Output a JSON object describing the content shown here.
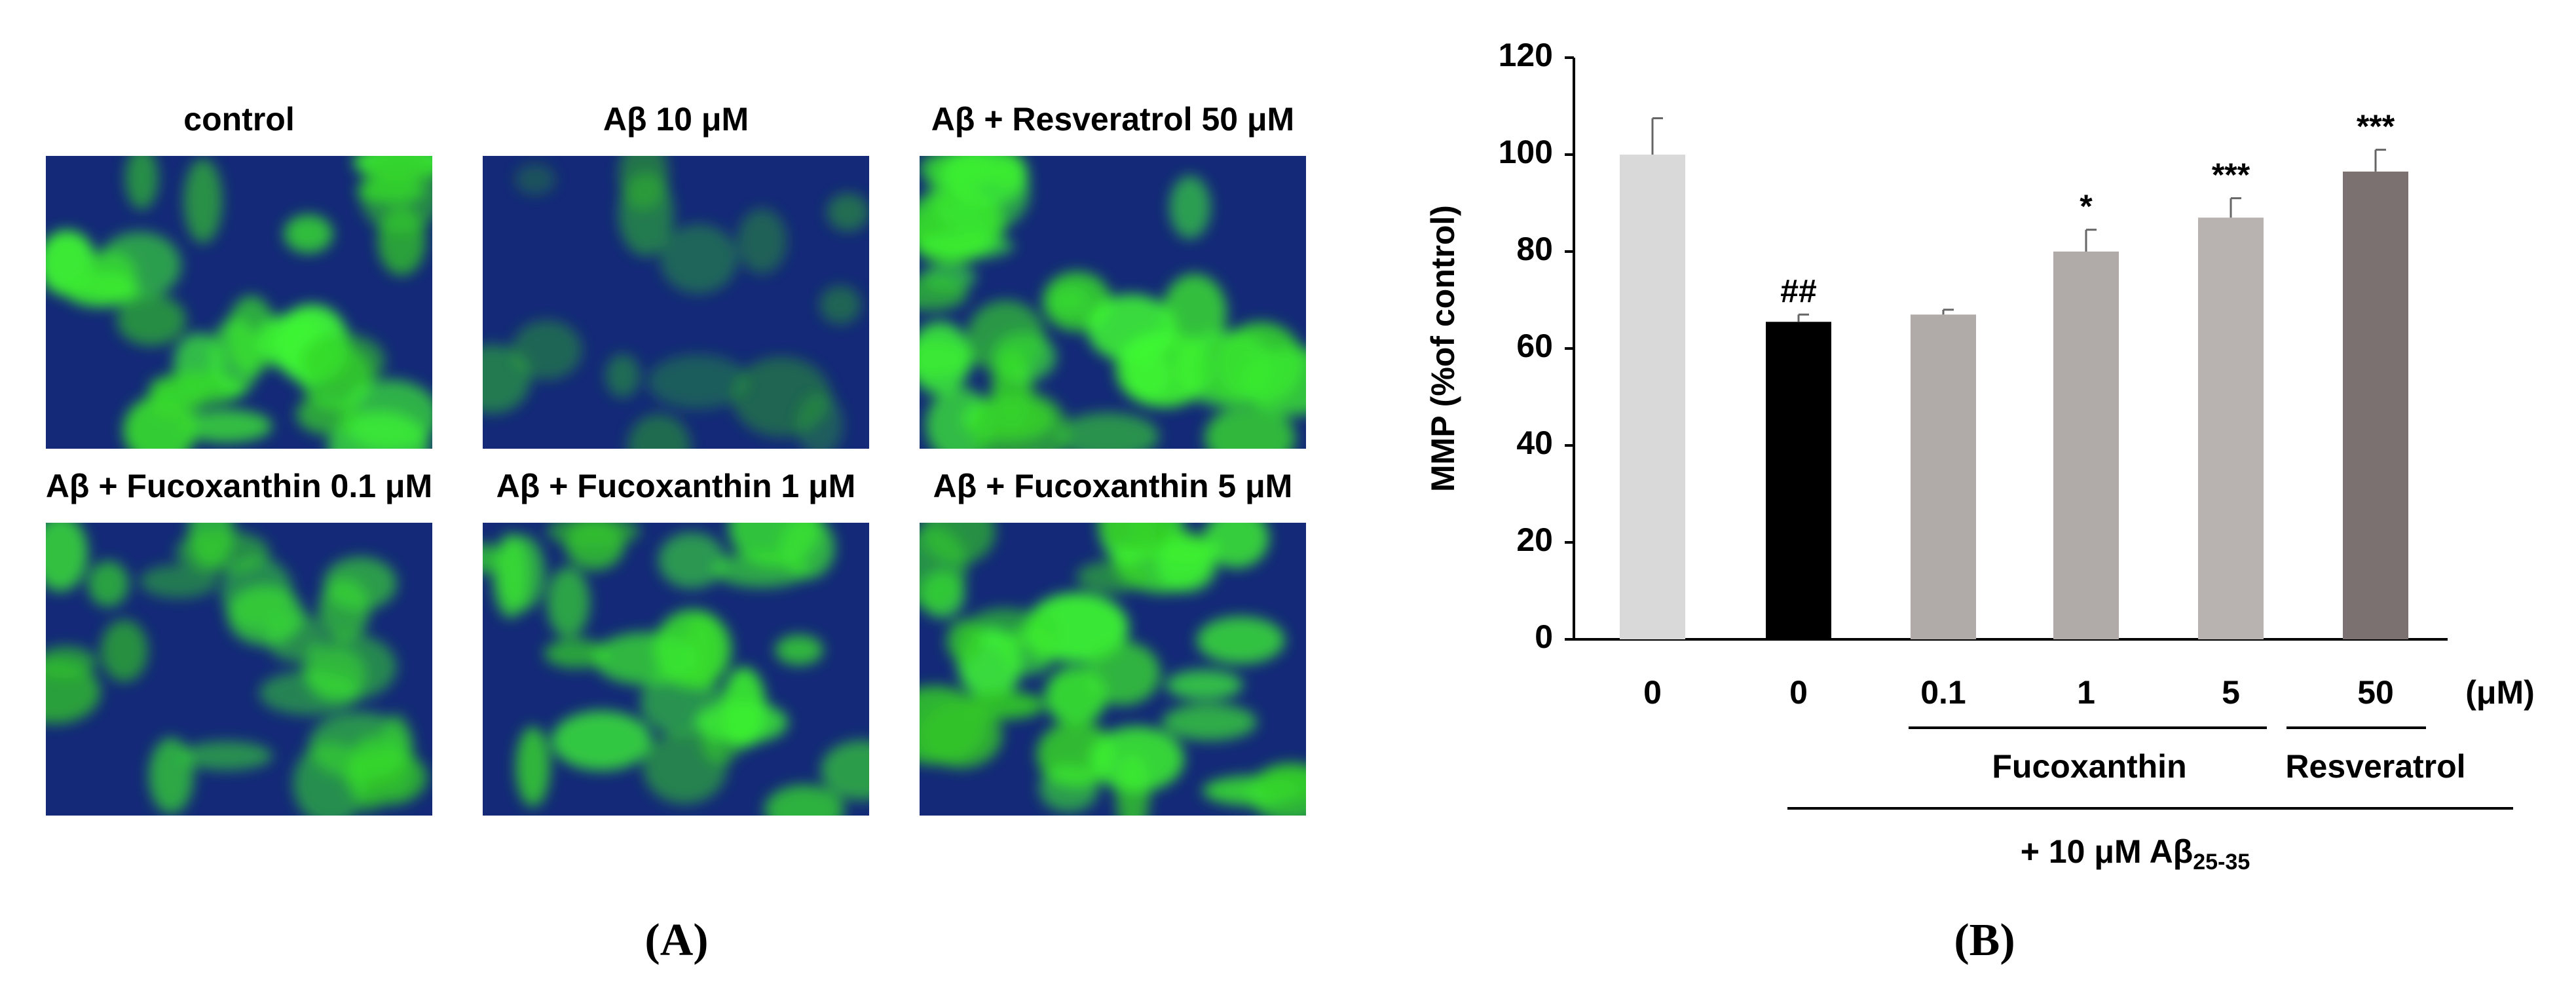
{
  "panel_a": {
    "image_labels": [
      "control",
      "Aβ 10 μM",
      "Aβ + Resveratrol 50 μM",
      "Aβ + Fucoxanthin 0.1 μM",
      "Aβ + Fucoxanthin 1 μM",
      "Aβ + Fucoxanthin 5 μM"
    ],
    "panel_label": "(A)"
  },
  "chart_data": {
    "type": "bar",
    "panel_label": "(B)",
    "y_label": "MMP (%of control)",
    "categories": [
      "0",
      "0",
      "0.1",
      "1",
      "5",
      "50"
    ],
    "values": [
      100,
      65.5,
      67,
      80,
      87,
      96.5
    ],
    "errors": [
      7.5,
      1.5,
      1,
      4.5,
      4,
      4.5
    ],
    "colors": [
      "#d9d9d9",
      "#000000",
      "#b0aba8",
      "#b0aba8",
      "#b8b3b0",
      "#7b7170"
    ],
    "annotations": [
      null,
      "##",
      null,
      "*",
      "***",
      "***"
    ],
    "x_unit": "(μM)",
    "group_labels": [
      "Fucoxanthin",
      "Resveratrol"
    ],
    "treatment_label": "+ 10 μM Aβ",
    "treatment_subscript": "25-35",
    "ylim": [
      0,
      120
    ],
    "yticks": [
      0,
      20,
      40,
      60,
      80,
      100,
      120
    ],
    "grid": false
  }
}
